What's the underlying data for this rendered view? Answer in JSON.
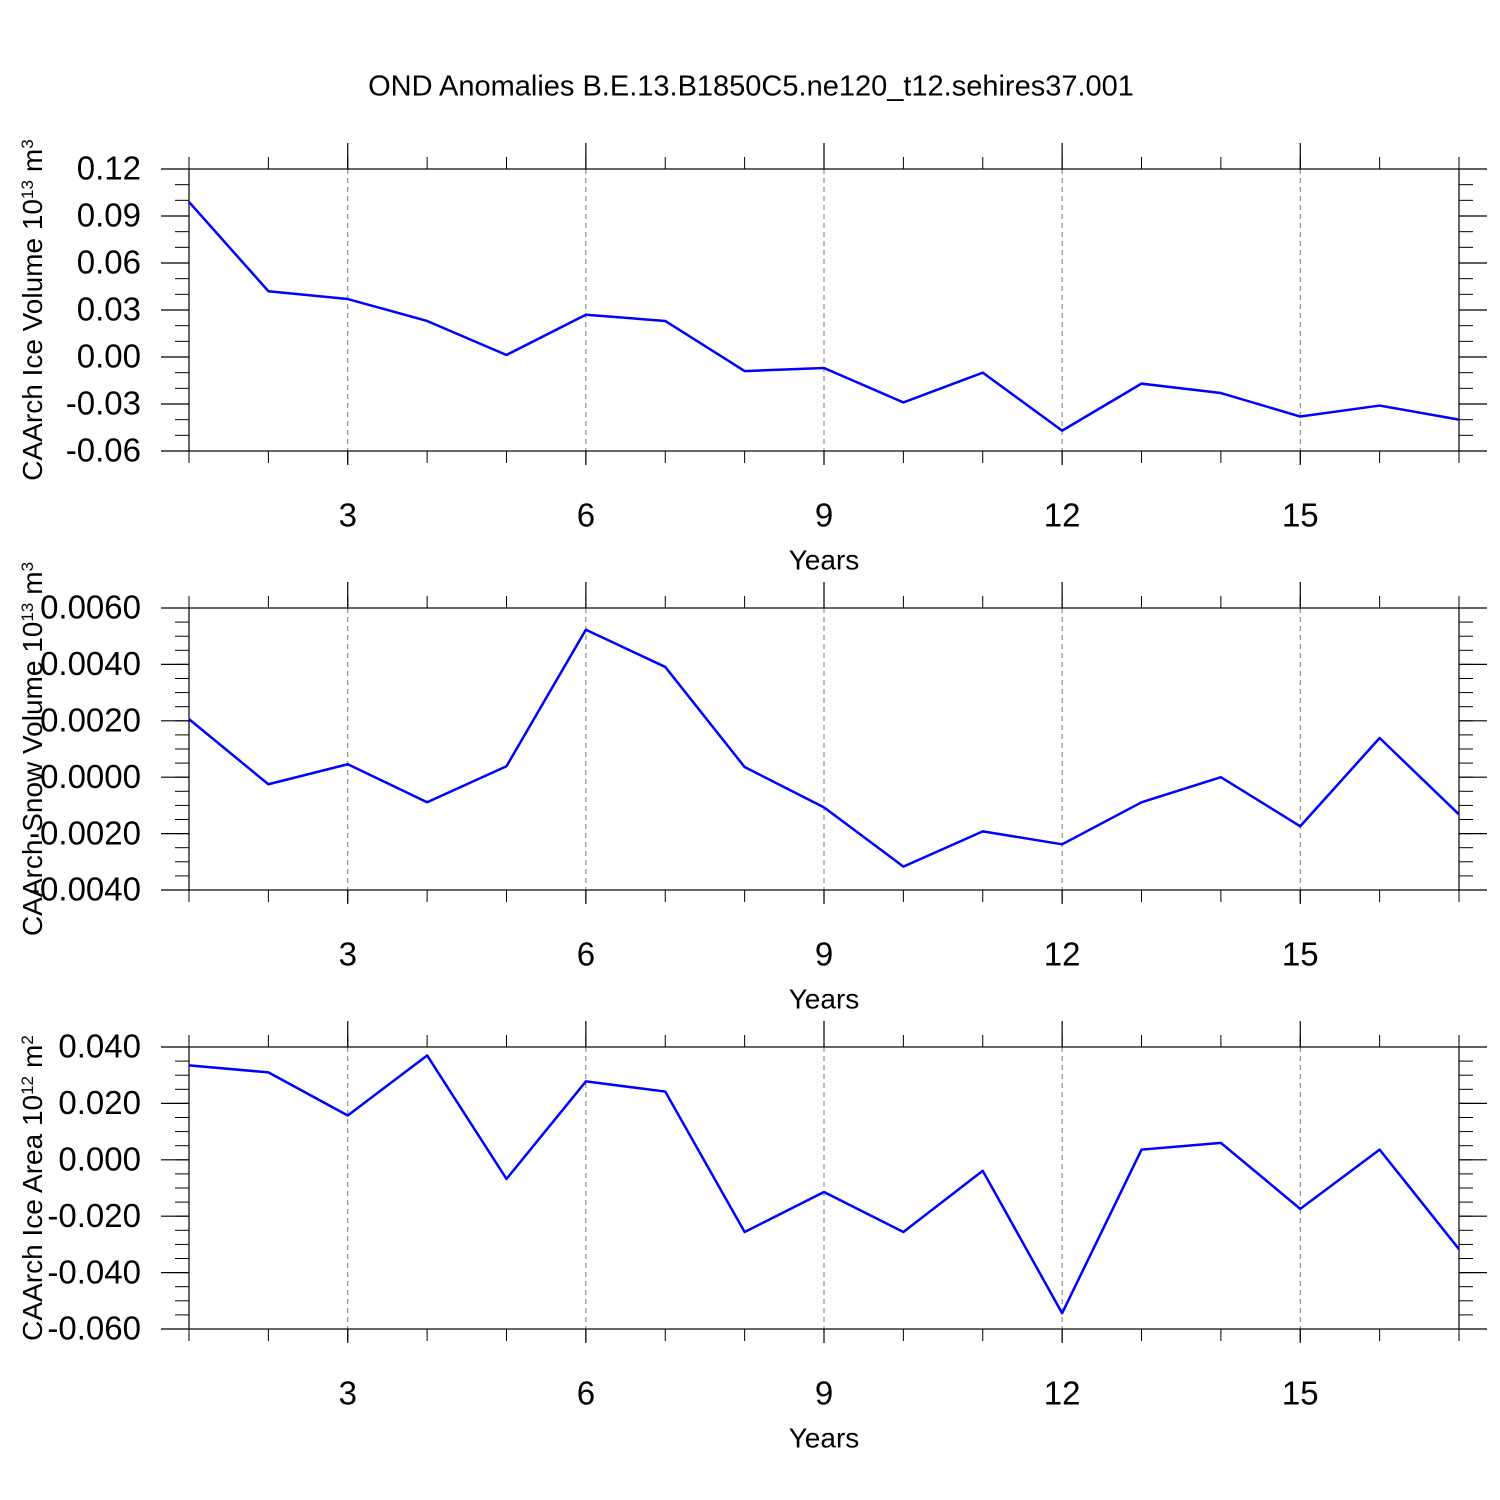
{
  "chart_data": [
    {
      "type": "line",
      "title": "OND Anomalies B.E.13.B1850C5.ne120_t12.sehires37.001",
      "ylabel": [
        "CAArch Ice Volume 10",
        "13",
        "m",
        "3"
      ],
      "xlabel": "Years",
      "x": [
        1,
        2,
        3,
        4,
        5,
        6,
        7,
        8,
        9,
        10,
        11,
        12,
        13,
        14,
        15,
        16,
        17
      ],
      "series": [
        {
          "color": "#0000ff",
          "values": [
            0.099,
            0.042,
            0.037,
            0.023,
            0.0013,
            0.027,
            0.023,
            -0.009,
            -0.007,
            -0.029,
            -0.01,
            -0.047,
            -0.017,
            -0.023,
            -0.038,
            -0.031,
            -0.04
          ]
        }
      ],
      "xlim": [
        1,
        17
      ],
      "xticks": [
        3,
        6,
        9,
        12,
        15
      ],
      "xminorticks": [
        1,
        2,
        3,
        4,
        5,
        6,
        7,
        8,
        9,
        10,
        11,
        12,
        13,
        14,
        15,
        16,
        17
      ],
      "ylim": [
        -0.06,
        0.12
      ],
      "yticks": [
        0.12,
        0.09,
        0.06,
        0.03,
        {
          "value": 0,
          "label": "0.00"
        },
        -0.03,
        -0.06
      ],
      "yminorticks": [
        -0.06,
        -0.05,
        -0.04,
        -0.03,
        -0.02,
        -0.01,
        0,
        0.01,
        0.02,
        0.03,
        0.04,
        0.05,
        0.06,
        0.07,
        0.08,
        0.09,
        0.1,
        0.11,
        0.12
      ],
      "xgrid": true
    },
    {
      "type": "line",
      "ylabel": [
        "CAArch Snow Volume 10",
        "13",
        "m",
        "3"
      ],
      "xlabel": "Years",
      "x": [
        1,
        2,
        3,
        4,
        5,
        6,
        7,
        8,
        9,
        10,
        11,
        12,
        13,
        14,
        15,
        16,
        17
      ],
      "series": [
        {
          "color": "#0000ff",
          "values": [
            0.00206,
            -0.00025,
            0.00046,
            -0.00089,
            0.00039,
            0.00523,
            0.00391,
            0.00036,
            -0.00107,
            -0.00317,
            -0.00192,
            -0.00238,
            -0.00089,
            0.0,
            -0.00174,
            0.00139,
            -0.00132
          ]
        }
      ],
      "xlim": [
        1,
        17
      ],
      "xticks": [
        3,
        6,
        9,
        12,
        15
      ],
      "xminorticks": [
        1,
        2,
        3,
        4,
        5,
        6,
        7,
        8,
        9,
        10,
        11,
        12,
        13,
        14,
        15,
        16,
        17
      ],
      "ylim": [
        -0.004,
        0.006
      ],
      "yticks": [
        {
          "value": 0.006,
          "label": "0.0060"
        },
        {
          "value": 0.004,
          "label": "0.0040"
        },
        {
          "value": 0.002,
          "label": "0.0020"
        },
        {
          "value": 0,
          "label": "0.0000"
        },
        {
          "value": -0.002,
          "label": "-0.0020"
        },
        {
          "value": -0.004,
          "label": "-0.0040"
        }
      ],
      "yminorticks": [
        -0.004,
        -0.0035,
        -0.003,
        -0.0025,
        -0.002,
        -0.0015,
        -0.001,
        -0.0005,
        0,
        0.0005,
        0.001,
        0.0015,
        0.002,
        0.0025,
        0.003,
        0.0035,
        0.004,
        0.0045,
        0.005,
        0.0055,
        0.006
      ],
      "xgrid": true
    },
    {
      "type": "line",
      "ylabel": [
        "CAArch Ice Area 10",
        "12",
        "m",
        "2"
      ],
      "xlabel": "Years",
      "x": [
        1,
        2,
        3,
        4,
        5,
        6,
        7,
        8,
        9,
        10,
        11,
        12,
        13,
        14,
        15,
        16,
        17
      ],
      "series": [
        {
          "color": "#0000ff",
          "values": [
            0.0335,
            0.031,
            0.0157,
            0.037,
            -0.0068,
            0.0278,
            0.0242,
            -0.0256,
            -0.0114,
            -0.0256,
            -0.0039,
            -0.0544,
            0.0036,
            0.006,
            -0.0174,
            0.0036,
            -0.0317
          ]
        }
      ],
      "xlim": [
        1,
        17
      ],
      "xticks": [
        3,
        6,
        9,
        12,
        15
      ],
      "xminorticks": [
        1,
        2,
        3,
        4,
        5,
        6,
        7,
        8,
        9,
        10,
        11,
        12,
        13,
        14,
        15,
        16,
        17
      ],
      "ylim": [
        -0.06,
        0.04
      ],
      "yticks": [
        {
          "value": 0.04,
          "label": "0.040"
        },
        {
          "value": 0.02,
          "label": "0.020"
        },
        {
          "value": 0,
          "label": "0.000"
        },
        {
          "value": -0.02,
          "label": "-0.020"
        },
        {
          "value": -0.04,
          "label": "-0.040"
        },
        {
          "value": -0.06,
          "label": "-0.060"
        }
      ],
      "yminorticks": [
        -0.06,
        -0.055,
        -0.05,
        -0.045,
        -0.04,
        -0.035,
        -0.03,
        -0.025,
        -0.02,
        -0.015,
        -0.01,
        -0.005,
        0,
        0.005,
        0.01,
        0.015,
        0.02,
        0.025,
        0.03,
        0.035,
        0.04
      ],
      "xgrid": true
    }
  ]
}
